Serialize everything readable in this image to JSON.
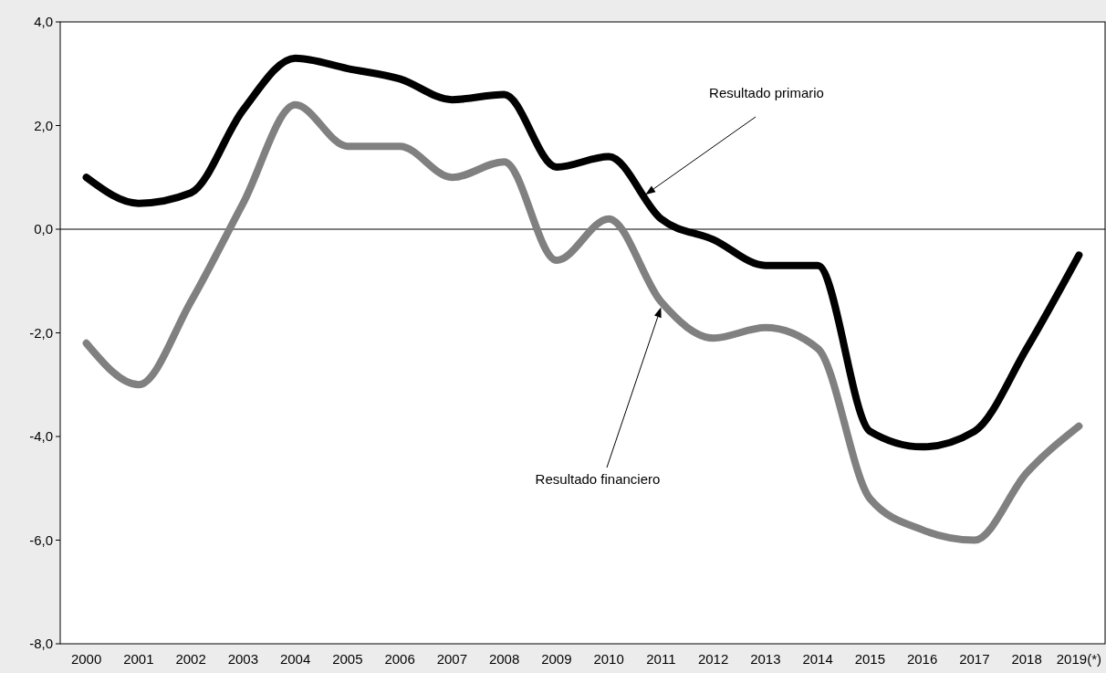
{
  "chart_data": {
    "type": "line",
    "categories": [
      "2000",
      "2001",
      "2002",
      "2003",
      "2004",
      "2005",
      "2006",
      "2007",
      "2008",
      "2009",
      "2010",
      "2011",
      "2012",
      "2013",
      "2014",
      "2015",
      "2016",
      "2017",
      "2018",
      "2019(*)"
    ],
    "series": [
      {
        "color": "#000000",
        "values": [
          1.0,
          0.5,
          0.7,
          2.3,
          3.3,
          3.1,
          2.9,
          2.5,
          2.6,
          1.2,
          1.4,
          0.2,
          -0.2,
          -0.7,
          -0.7,
          -3.9,
          -4.2,
          -3.9,
          -2.3,
          -0.5
        ]
      },
      {
        "color": "#808080",
        "values": [
          -2.2,
          -3.0,
          -1.4,
          0.5,
          2.4,
          1.6,
          1.6,
          1.0,
          1.3,
          -0.6,
          0.2,
          -1.4,
          -2.1,
          -1.9,
          -2.3,
          -5.2,
          -5.8,
          -6.0,
          -4.7,
          -3.8
        ]
      }
    ],
    "ylim": [
      -8,
      4
    ],
    "yticks": [
      {
        "value": -8,
        "label": "-8,0"
      },
      {
        "value": -6,
        "label": "-6,0"
      },
      {
        "value": -4,
        "label": "-4,0"
      },
      {
        "value": -2,
        "label": "-2,0"
      },
      {
        "value": 0,
        "label": "0,0"
      },
      {
        "value": 2,
        "label": "2,0"
      },
      {
        "value": 4,
        "label": "4,0"
      }
    ],
    "ref_lines": [
      {
        "axis": "y",
        "value": 0,
        "color": "#000000"
      }
    ],
    "annotations": [
      "Resultado primario",
      "Resultado financiero"
    ],
    "grid": false,
    "marker": "none",
    "line_style": "solid"
  }
}
